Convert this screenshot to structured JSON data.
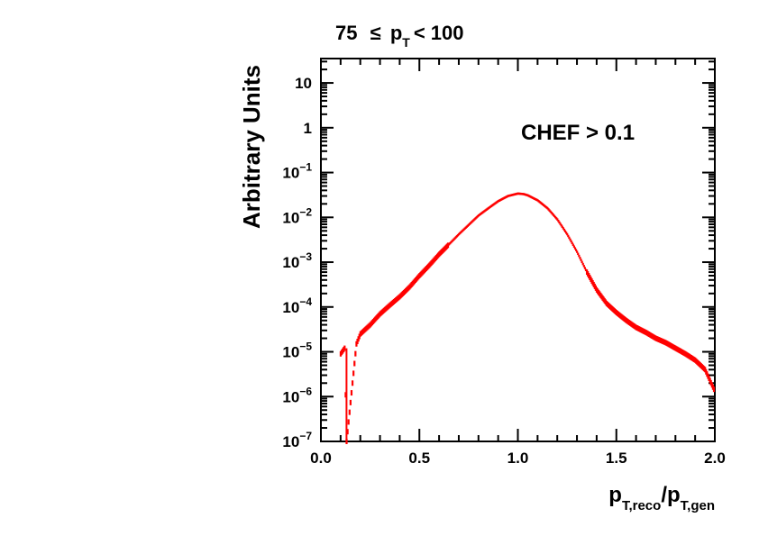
{
  "chart_data": {
    "type": "line",
    "title": {
      "pre": "75",
      "leq": "≤",
      "p": "p",
      "sub": "T",
      "post": "< 100"
    },
    "annotation": "CHEF > 0.1",
    "xlabel": {
      "p1": "p",
      "sub1": "T,reco",
      "slash": "/",
      "p2": "p",
      "sub2": "T,gen"
    },
    "ylabel": "Arbitrary Units",
    "xlim": [
      0.0,
      2.0
    ],
    "ylim": [
      1e-07,
      35
    ],
    "yscale": "log",
    "x_ticks": [
      {
        "value": 0.0,
        "label": "0.0"
      },
      {
        "value": 0.5,
        "label": "0.5"
      },
      {
        "value": 1.0,
        "label": "1.0"
      },
      {
        "value": 1.5,
        "label": "1.5"
      },
      {
        "value": 2.0,
        "label": "2.0"
      }
    ],
    "y_ticks": [
      {
        "value": 1e-07,
        "base": "10",
        "exp": "−7"
      },
      {
        "value": 1e-06,
        "base": "10",
        "exp": "−6"
      },
      {
        "value": 1e-05,
        "base": "10",
        "exp": "−5"
      },
      {
        "value": 0.0001,
        "base": "10",
        "exp": "−4"
      },
      {
        "value": 0.001,
        "base": "10",
        "exp": "−3"
      },
      {
        "value": 0.01,
        "base": "10",
        "exp": "−2"
      },
      {
        "value": 0.1,
        "base": "10",
        "exp": "−1"
      },
      {
        "value": 1,
        "base": "1",
        "exp": ""
      },
      {
        "value": 10,
        "base": "10",
        "exp": ""
      }
    ],
    "series": [
      {
        "color": "#ff0000",
        "points": [
          [
            0.1,
            9e-06
          ],
          [
            0.12,
            1.2e-05
          ],
          [
            0.13,
            1e-07
          ],
          [
            0.16,
            2e-06
          ],
          [
            0.18,
            1.5e-05
          ],
          [
            0.2,
            2.5e-05
          ],
          [
            0.25,
            4e-05
          ],
          [
            0.3,
            7e-05
          ],
          [
            0.35,
            0.00011
          ],
          [
            0.4,
            0.00017
          ],
          [
            0.45,
            0.00028
          ],
          [
            0.5,
            0.0005
          ],
          [
            0.55,
            0.00085
          ],
          [
            0.6,
            0.0015
          ],
          [
            0.65,
            0.0025
          ],
          [
            0.7,
            0.0042
          ],
          [
            0.75,
            0.0068
          ],
          [
            0.8,
            0.011
          ],
          [
            0.85,
            0.016
          ],
          [
            0.9,
            0.023
          ],
          [
            0.95,
            0.03
          ],
          [
            1.0,
            0.034
          ],
          [
            1.03,
            0.033
          ],
          [
            1.05,
            0.031
          ],
          [
            1.1,
            0.024
          ],
          [
            1.15,
            0.016
          ],
          [
            1.2,
            0.009
          ],
          [
            1.25,
            0.0042
          ],
          [
            1.3,
            0.0017
          ],
          [
            1.35,
            0.0006
          ],
          [
            1.4,
            0.00024
          ],
          [
            1.45,
            0.00012
          ],
          [
            1.5,
            7.5e-05
          ],
          [
            1.55,
            5e-05
          ],
          [
            1.6,
            3.5e-05
          ],
          [
            1.65,
            2.7e-05
          ],
          [
            1.7,
            2e-05
          ],
          [
            1.75,
            1.6e-05
          ],
          [
            1.8,
            1.2e-05
          ],
          [
            1.85,
            9e-06
          ],
          [
            1.9,
            6.5e-06
          ],
          [
            1.95,
            4e-06
          ],
          [
            2.0,
            1.3e-06
          ]
        ]
      }
    ]
  }
}
